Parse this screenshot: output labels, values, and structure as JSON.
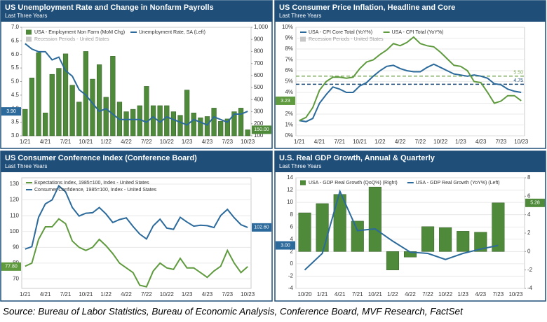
{
  "chart_data": [
    {
      "type": "combo",
      "title": "US Unemployment Rate and Change in Nonfarm Payrolls",
      "subtitle": "Last Three Years",
      "categories": [
        "1/21",
        null,
        null,
        "4/21",
        null,
        null,
        "7/21",
        null,
        null,
        "10/21",
        null,
        null,
        "1/22",
        null,
        null,
        "4/22",
        null,
        null,
        "7/22",
        null,
        null,
        "10/22",
        null,
        null,
        "1/23",
        null,
        null,
        "4/23",
        null,
        null,
        "7/23",
        null,
        null,
        "10/23"
      ],
      "series": [
        {
          "name": "USA - Employment Non Farm (MoM Chg)",
          "kind": "bar",
          "axis": "y2",
          "color": "#4f8a3a",
          "tag": "right",
          "values": [
            320,
            580,
            790,
            290,
            610,
            660,
            780,
            520,
            380,
            800,
            570,
            690,
            420,
            760,
            380,
            300,
            320,
            350,
            510,
            350,
            350,
            350,
            300,
            270,
            480,
            290,
            250,
            260,
            330,
            220,
            240,
            300,
            330,
            150
          ],
          "value_labels": [
            null,
            null,
            null,
            null,
            null,
            null,
            null,
            null,
            null,
            null,
            null,
            null,
            null,
            null,
            null,
            null,
            null,
            null,
            null,
            null,
            null,
            null,
            null,
            null,
            null,
            null,
            null,
            null,
            null,
            null,
            null,
            null,
            null,
            "150.00"
          ]
        },
        {
          "name": "Unemployment Rate, SA (Left)",
          "kind": "line",
          "color": "#2b6a9b",
          "tag": "left",
          "values": [
            6.4,
            6.2,
            6.1,
            6.1,
            5.8,
            5.9,
            5.4,
            5.2,
            4.7,
            4.5,
            4.2,
            3.9,
            4.0,
            3.8,
            3.6,
            3.6,
            3.6,
            3.6,
            3.5,
            3.7,
            3.5,
            3.7,
            3.6,
            3.5,
            3.4,
            3.6,
            3.5,
            3.4,
            3.7,
            3.6,
            3.5,
            3.8,
            3.8,
            3.9
          ],
          "value_labels": [
            null,
            null,
            null,
            null,
            null,
            null,
            null,
            null,
            null,
            null,
            null,
            null,
            null,
            null,
            null,
            null,
            null,
            null,
            null,
            null,
            null,
            null,
            null,
            null,
            null,
            null,
            null,
            null,
            null,
            null,
            null,
            null,
            null,
            "3.90"
          ]
        }
      ],
      "legend_extra": [
        {
          "name": "Recession Periods - United States",
          "color": "#c8c8c8"
        }
      ],
      "ylim": [
        3,
        7
      ],
      "yticks": [
        {
          "value": 3,
          "label": "3.0"
        },
        3.5,
        {
          "value": 4,
          "label": "4.0"
        },
        4.5,
        {
          "value": 5,
          "label": "5.0"
        },
        5.5,
        {
          "value": 6,
          "label": "6.0"
        },
        6.5,
        {
          "value": 7,
          "label": "7.0"
        }
      ],
      "y2lim": [
        100,
        1000
      ],
      "y2ticks": [
        100,
        200,
        300,
        400,
        500,
        600,
        700,
        800,
        900,
        {
          "value": 1000,
          "label": "1,000"
        }
      ],
      "grid": false
    },
    {
      "type": "line",
      "title": "US Consumer Price Inflation, Headline and Core",
      "subtitle": "Last Three Years",
      "categories": [
        "1/21",
        null,
        null,
        "4/21",
        null,
        null,
        "7/21",
        null,
        null,
        "10/21",
        null,
        null,
        "1/22",
        null,
        null,
        "4/22",
        null,
        null,
        "7/22",
        null,
        null,
        "10/22",
        null,
        null,
        "1/23",
        null,
        null,
        "4/23",
        null,
        null,
        "7/23",
        null,
        null,
        "10/23"
      ],
      "series": [
        {
          "name": "USA - CPI Core Total (YoY%)",
          "kind": "line",
          "color": "#2b6a9b",
          "values": [
            1.4,
            1.3,
            1.6,
            3.0,
            3.8,
            4.5,
            4.3,
            4.0,
            4.0,
            4.6,
            4.9,
            5.5,
            6.0,
            6.4,
            6.5,
            6.2,
            6.0,
            5.9,
            5.9,
            6.3,
            6.6,
            6.3,
            6.0,
            5.7,
            5.6,
            5.5,
            5.6,
            5.5,
            5.3,
            4.8,
            4.7,
            4.3,
            4.1,
            4.0
          ]
        },
        {
          "name": "USA - CPI Total (YoY%)",
          "kind": "line",
          "color": "#5f9a3e",
          "tag": "left",
          "values": [
            1.4,
            1.7,
            2.6,
            4.2,
            5.0,
            5.4,
            5.4,
            5.3,
            5.4,
            6.2,
            6.8,
            7.0,
            7.5,
            7.9,
            8.5,
            8.3,
            8.6,
            9.1,
            8.5,
            8.3,
            8.2,
            7.7,
            7.1,
            6.5,
            6.4,
            6.0,
            5.0,
            4.9,
            4.0,
            3.0,
            3.2,
            3.7,
            3.7,
            3.23
          ]
        }
      ],
      "legend_extra": [
        {
          "name": "Recession Periods - United States",
          "color": "#c8c8c8"
        }
      ],
      "ref_lines": [
        {
          "value": 5.5,
          "label": "5.50",
          "color": "#7fae5e"
        },
        {
          "value": 4.75,
          "label": "4.75",
          "color": "#1f4e79"
        }
      ],
      "ylim": [
        0,
        10
      ],
      "yticks": [
        {
          "value": 0,
          "label": "0%"
        },
        {
          "value": 1,
          "label": "1%"
        },
        {
          "value": 2,
          "label": "2%"
        },
        {
          "value": 3,
          "label": "3%"
        },
        {
          "value": 4,
          "label": "4%"
        },
        {
          "value": 5,
          "label": "5%"
        },
        {
          "value": 6,
          "label": "6%"
        },
        {
          "value": 7,
          "label": "7%"
        },
        {
          "value": 8,
          "label": "8%"
        },
        {
          "value": 9,
          "label": "9%"
        },
        {
          "value": 10,
          "label": "10%"
        }
      ],
      "grid": true
    },
    {
      "type": "line",
      "title": "US Consumer Conference Index (Conference Board)",
      "subtitle": "Last Three Years",
      "categories": [
        "1/21",
        null,
        null,
        "4/21",
        null,
        null,
        "7/21",
        null,
        null,
        "10/21",
        null,
        null,
        "1/22",
        null,
        null,
        "4/22",
        null,
        null,
        "7/22",
        null,
        null,
        "10/22",
        null,
        null,
        "1/23",
        null,
        null,
        "4/23",
        null,
        null,
        "7/23",
        null,
        null,
        "10/23"
      ],
      "series": [
        {
          "name": "Expectations Index, 1985=100, Index - United States",
          "kind": "line",
          "color": "#5f9a3e",
          "tag": "left",
          "values": [
            78,
            80,
            95,
            103,
            103,
            108,
            105,
            94,
            90,
            88,
            90,
            95,
            91,
            86,
            80,
            77,
            74,
            66,
            65,
            75,
            80,
            77,
            76,
            83,
            77,
            77,
            74,
            71,
            75,
            78,
            88,
            80,
            74,
            77.8
          ],
          "value_labels": [
            null,
            null,
            null,
            null,
            null,
            null,
            null,
            null,
            null,
            null,
            null,
            null,
            null,
            null,
            null,
            null,
            null,
            null,
            null,
            null,
            null,
            null,
            null,
            null,
            null,
            null,
            null,
            null,
            null,
            null,
            null,
            null,
            null,
            "77.80"
          ]
        },
        {
          "name": "Consumer Confidence, 1985=100, Index - United States",
          "kind": "line",
          "color": "#2b6a9b",
          "tag": "right",
          "values": [
            88.9,
            90.4,
            109.0,
            117.5,
            120.0,
            128.9,
            125.1,
            115.2,
            109.8,
            111.6,
            111.9,
            115.2,
            111.1,
            105.7,
            107.6,
            108.6,
            103.2,
            98.4,
            95.3,
            103.6,
            107.8,
            102.2,
            101.4,
            109.0,
            106.0,
            103.4,
            104.0,
            103.7,
            102.5,
            110.1,
            114.0,
            108.7,
            104.3,
            102.6
          ],
          "value_labels": [
            null,
            null,
            null,
            null,
            null,
            null,
            null,
            null,
            null,
            null,
            null,
            null,
            null,
            null,
            null,
            null,
            null,
            null,
            null,
            null,
            null,
            null,
            null,
            null,
            null,
            null,
            null,
            null,
            null,
            null,
            null,
            null,
            null,
            "102.60"
          ]
        }
      ],
      "ylim": [
        64,
        134
      ],
      "yticks": [
        70,
        80,
        90,
        100,
        110,
        120,
        130
      ],
      "grid": true
    },
    {
      "type": "combo",
      "title": "U.S. Real GDP Growth, Annual & Quarterly",
      "subtitle": "Last Three Years",
      "categories": [
        "10/20",
        "1/21",
        "4/21",
        "7/21",
        "10/21",
        "1/22",
        "4/22",
        "7/22",
        "10/22",
        "1/23",
        "4/23",
        "7/23",
        "10/23"
      ],
      "series": [
        {
          "name": "USA - GDP Real Growth (QoQ%) (Right)",
          "kind": "bar",
          "axis": "y2",
          "color": "#4f8a3a",
          "tag": "right",
          "values": [
            4.2,
            5.2,
            6.2,
            3.3,
            7.0,
            -2.0,
            -0.6,
            2.7,
            2.6,
            2.2,
            2.1,
            5.28,
            null
          ]
        },
        {
          "name": "USA - GDP Real Growth (YoY%) (Left)",
          "kind": "line",
          "color": "#2b6a9b",
          "tag": "left",
          "values": [
            -1.0,
            1.7,
            11.8,
            5.4,
            5.7,
            3.7,
            1.9,
            1.7,
            0.7,
            1.7,
            2.4,
            3.0,
            null
          ],
          "value_labels": [
            null,
            null,
            null,
            null,
            null,
            null,
            null,
            null,
            null,
            null,
            null,
            "3.00",
            null
          ]
        }
      ],
      "ylim": [
        -4,
        14
      ],
      "yticks": [
        -4,
        -2,
        0,
        2,
        4,
        6,
        8,
        10,
        12,
        14
      ],
      "y2lim": [
        -4,
        8
      ],
      "y2ticks": [
        -4,
        -2,
        0,
        2,
        4,
        6,
        8
      ],
      "grid": true
    }
  ],
  "source": "Source: Bureau of Labor Statistics, Bureau of Economic Analysis, Conference Board, MVF Research, FactSet"
}
